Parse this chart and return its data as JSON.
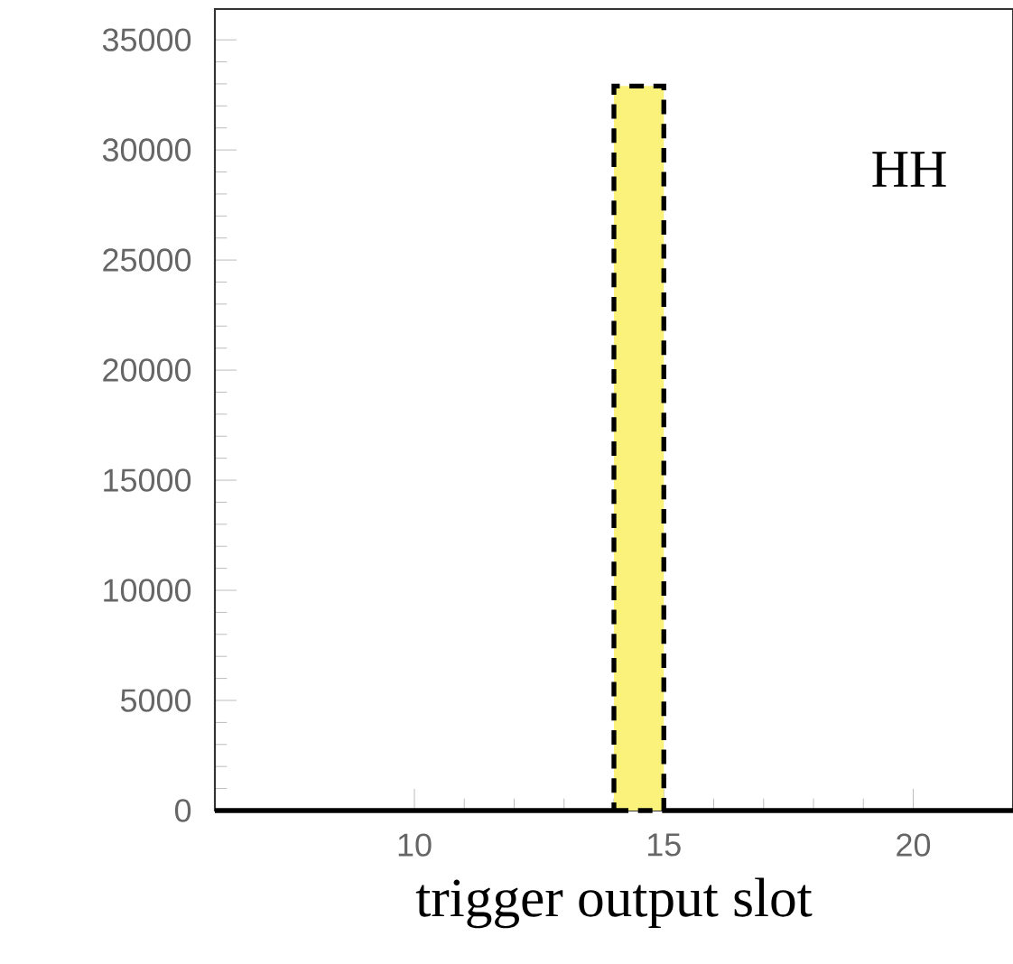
{
  "chart_data": {
    "type": "histogram",
    "xlabel": "trigger output slot",
    "annotations": [
      "HH"
    ],
    "bins": [
      6,
      7,
      8,
      9,
      10,
      11,
      12,
      13,
      14,
      15,
      16,
      17,
      18,
      19,
      20,
      21,
      22
    ],
    "values": [
      0,
      0,
      0,
      0,
      0,
      0,
      0,
      0,
      32900,
      0,
      0,
      0,
      0,
      0,
      0,
      0
    ],
    "color": "#faf27a",
    "line_style": "dashed",
    "xlim": [
      6,
      22
    ],
    "xticks": [
      10,
      15,
      20
    ],
    "ylim": [
      0,
      36400
    ],
    "yticks": [
      0,
      5000,
      10000,
      15000,
      20000,
      25000,
      30000,
      35000
    ]
  }
}
